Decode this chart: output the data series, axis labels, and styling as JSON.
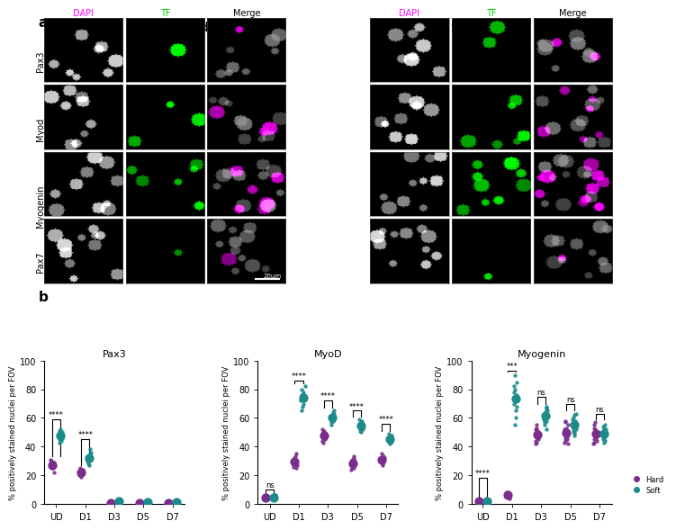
{
  "panel_a_label": "a",
  "panel_b_label": "b",
  "hard_label": "Hard",
  "soft_label": "Soft",
  "dapi_label": "DAPI",
  "tf_label": "TF",
  "merge_label": "Merge",
  "dapi_color": "#ff00ff",
  "tf_color": "#00cc00",
  "hard_color": "#7b2d8b",
  "soft_color": "#1a8a8a",
  "row_labels": [
    "Pax3",
    "Myod",
    "Myogenin",
    "Pax7"
  ],
  "plot_titles": [
    "Pax3",
    "MyoD",
    "Myogenin"
  ],
  "x_labels": [
    "UD",
    "D1",
    "D3",
    "D5",
    "D7"
  ],
  "ylabel": "% positively stained nuclei per FOV",
  "pax3_hard": {
    "UD": [
      28,
      27,
      30,
      25,
      22,
      29,
      31,
      26
    ],
    "D1": [
      21,
      23,
      22,
      20,
      25,
      24,
      19,
      22
    ],
    "D3": [
      1,
      1,
      0,
      1
    ],
    "D5": [
      1,
      0,
      1
    ],
    "D7": [
      1,
      0,
      1
    ]
  },
  "pax3_soft": {
    "UD": [
      45,
      50,
      48,
      46,
      52,
      47,
      44,
      49,
      51,
      43
    ],
    "D1": [
      28,
      32,
      35,
      30,
      27,
      33,
      38,
      29,
      31,
      36
    ],
    "D3": [
      2,
      1,
      2
    ],
    "D5": [
      1,
      2,
      1
    ],
    "D7": [
      1,
      1,
      2
    ]
  },
  "myod_hard": {
    "UD": [
      5,
      3,
      4,
      6,
      5,
      4,
      3
    ],
    "D1": [
      30,
      35,
      25,
      28,
      32,
      27,
      33,
      29,
      31,
      26
    ],
    "D3": [
      45,
      48,
      50,
      52,
      47,
      44,
      46,
      49,
      51,
      43
    ],
    "D5": [
      28,
      25,
      30,
      27,
      32,
      29,
      31,
      26,
      33,
      24
    ],
    "D7": [
      30,
      32,
      28,
      35,
      27,
      33,
      31,
      29
    ]
  },
  "myod_soft": {
    "UD": [
      4,
      5,
      3,
      6,
      4,
      5,
      3
    ],
    "D1": [
      65,
      70,
      75,
      72,
      68,
      80,
      78,
      73,
      76,
      82
    ],
    "D3": [
      55,
      60,
      58,
      62,
      57,
      65,
      63,
      59,
      61,
      64
    ],
    "D5": [
      50,
      55,
      52,
      58,
      54,
      56,
      53,
      57,
      51,
      59
    ],
    "D7": [
      42,
      45,
      48,
      44,
      46,
      47,
      43,
      49
    ]
  },
  "myogenin_hard": {
    "UD": [
      1,
      2,
      1,
      3,
      2,
      1
    ],
    "D1": [
      5,
      7,
      4,
      6,
      8,
      5,
      7,
      6
    ],
    "D3": [
      45,
      48,
      50,
      52,
      47,
      44,
      46,
      49,
      51,
      43,
      55,
      42,
      53
    ],
    "D5": [
      48,
      45,
      50,
      52,
      47,
      44,
      46,
      49,
      51,
      43,
      55,
      42,
      53,
      57,
      58
    ],
    "D7": [
      45,
      48,
      50,
      52,
      47,
      44,
      46,
      49,
      51,
      43,
      55,
      42,
      53,
      57
    ]
  },
  "myogenin_soft": {
    "UD": [
      2,
      1,
      3,
      2,
      1,
      2
    ],
    "D1": [
      55,
      60,
      65,
      70,
      75,
      72,
      68,
      80,
      78,
      73,
      76,
      82,
      85,
      90
    ],
    "D3": [
      55,
      60,
      58,
      62,
      57,
      65,
      63,
      59,
      61,
      64,
      66,
      52,
      67,
      68
    ],
    "D5": [
      50,
      55,
      52,
      58,
      54,
      56,
      53,
      57,
      51,
      59,
      60,
      48,
      62,
      63,
      49
    ],
    "D7": [
      45,
      50,
      52,
      48,
      46,
      47,
      43,
      49,
      55,
      44,
      51,
      53,
      54,
      47
    ]
  },
  "scale_bar_text": "20μm"
}
